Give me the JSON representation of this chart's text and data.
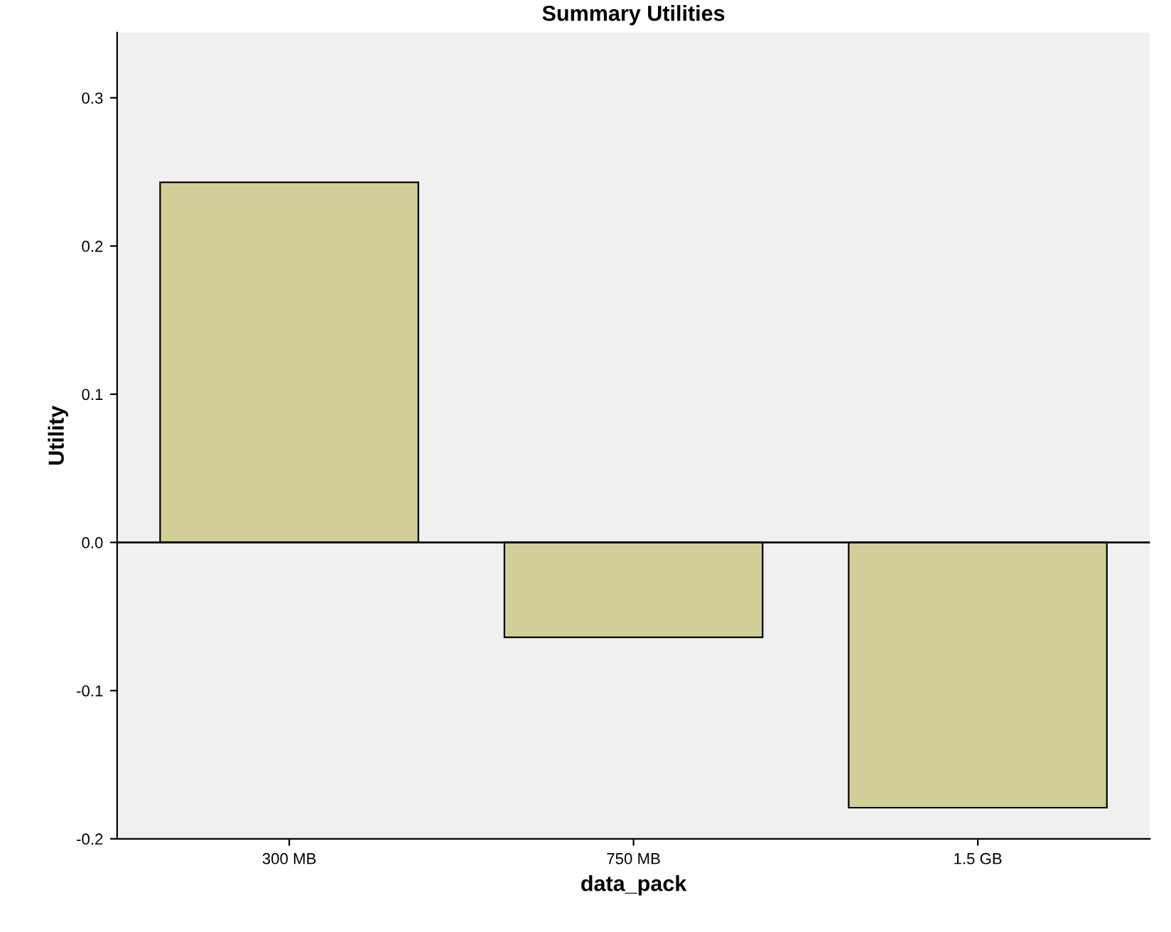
{
  "chart_data": {
    "type": "bar",
    "title": "Summary Utilities",
    "xlabel": "data_pack",
    "ylabel": "Utility",
    "categories": [
      "300 MB",
      "750 MB",
      "1.5 GB"
    ],
    "values": [
      0.243,
      -0.064,
      -0.179
    ],
    "color": "#d3ce97",
    "ylim": [
      -0.2,
      0.344
    ],
    "yticks": [
      -0.2,
      -0.1,
      {
        "value": 0,
        "label": "0.0"
      },
      0.1,
      0.2,
      0.3
    ],
    "ref_lines": [
      {
        "axis": "y",
        "value": 0,
        "color": "#000000"
      }
    ],
    "grid": false,
    "legend": false
  }
}
